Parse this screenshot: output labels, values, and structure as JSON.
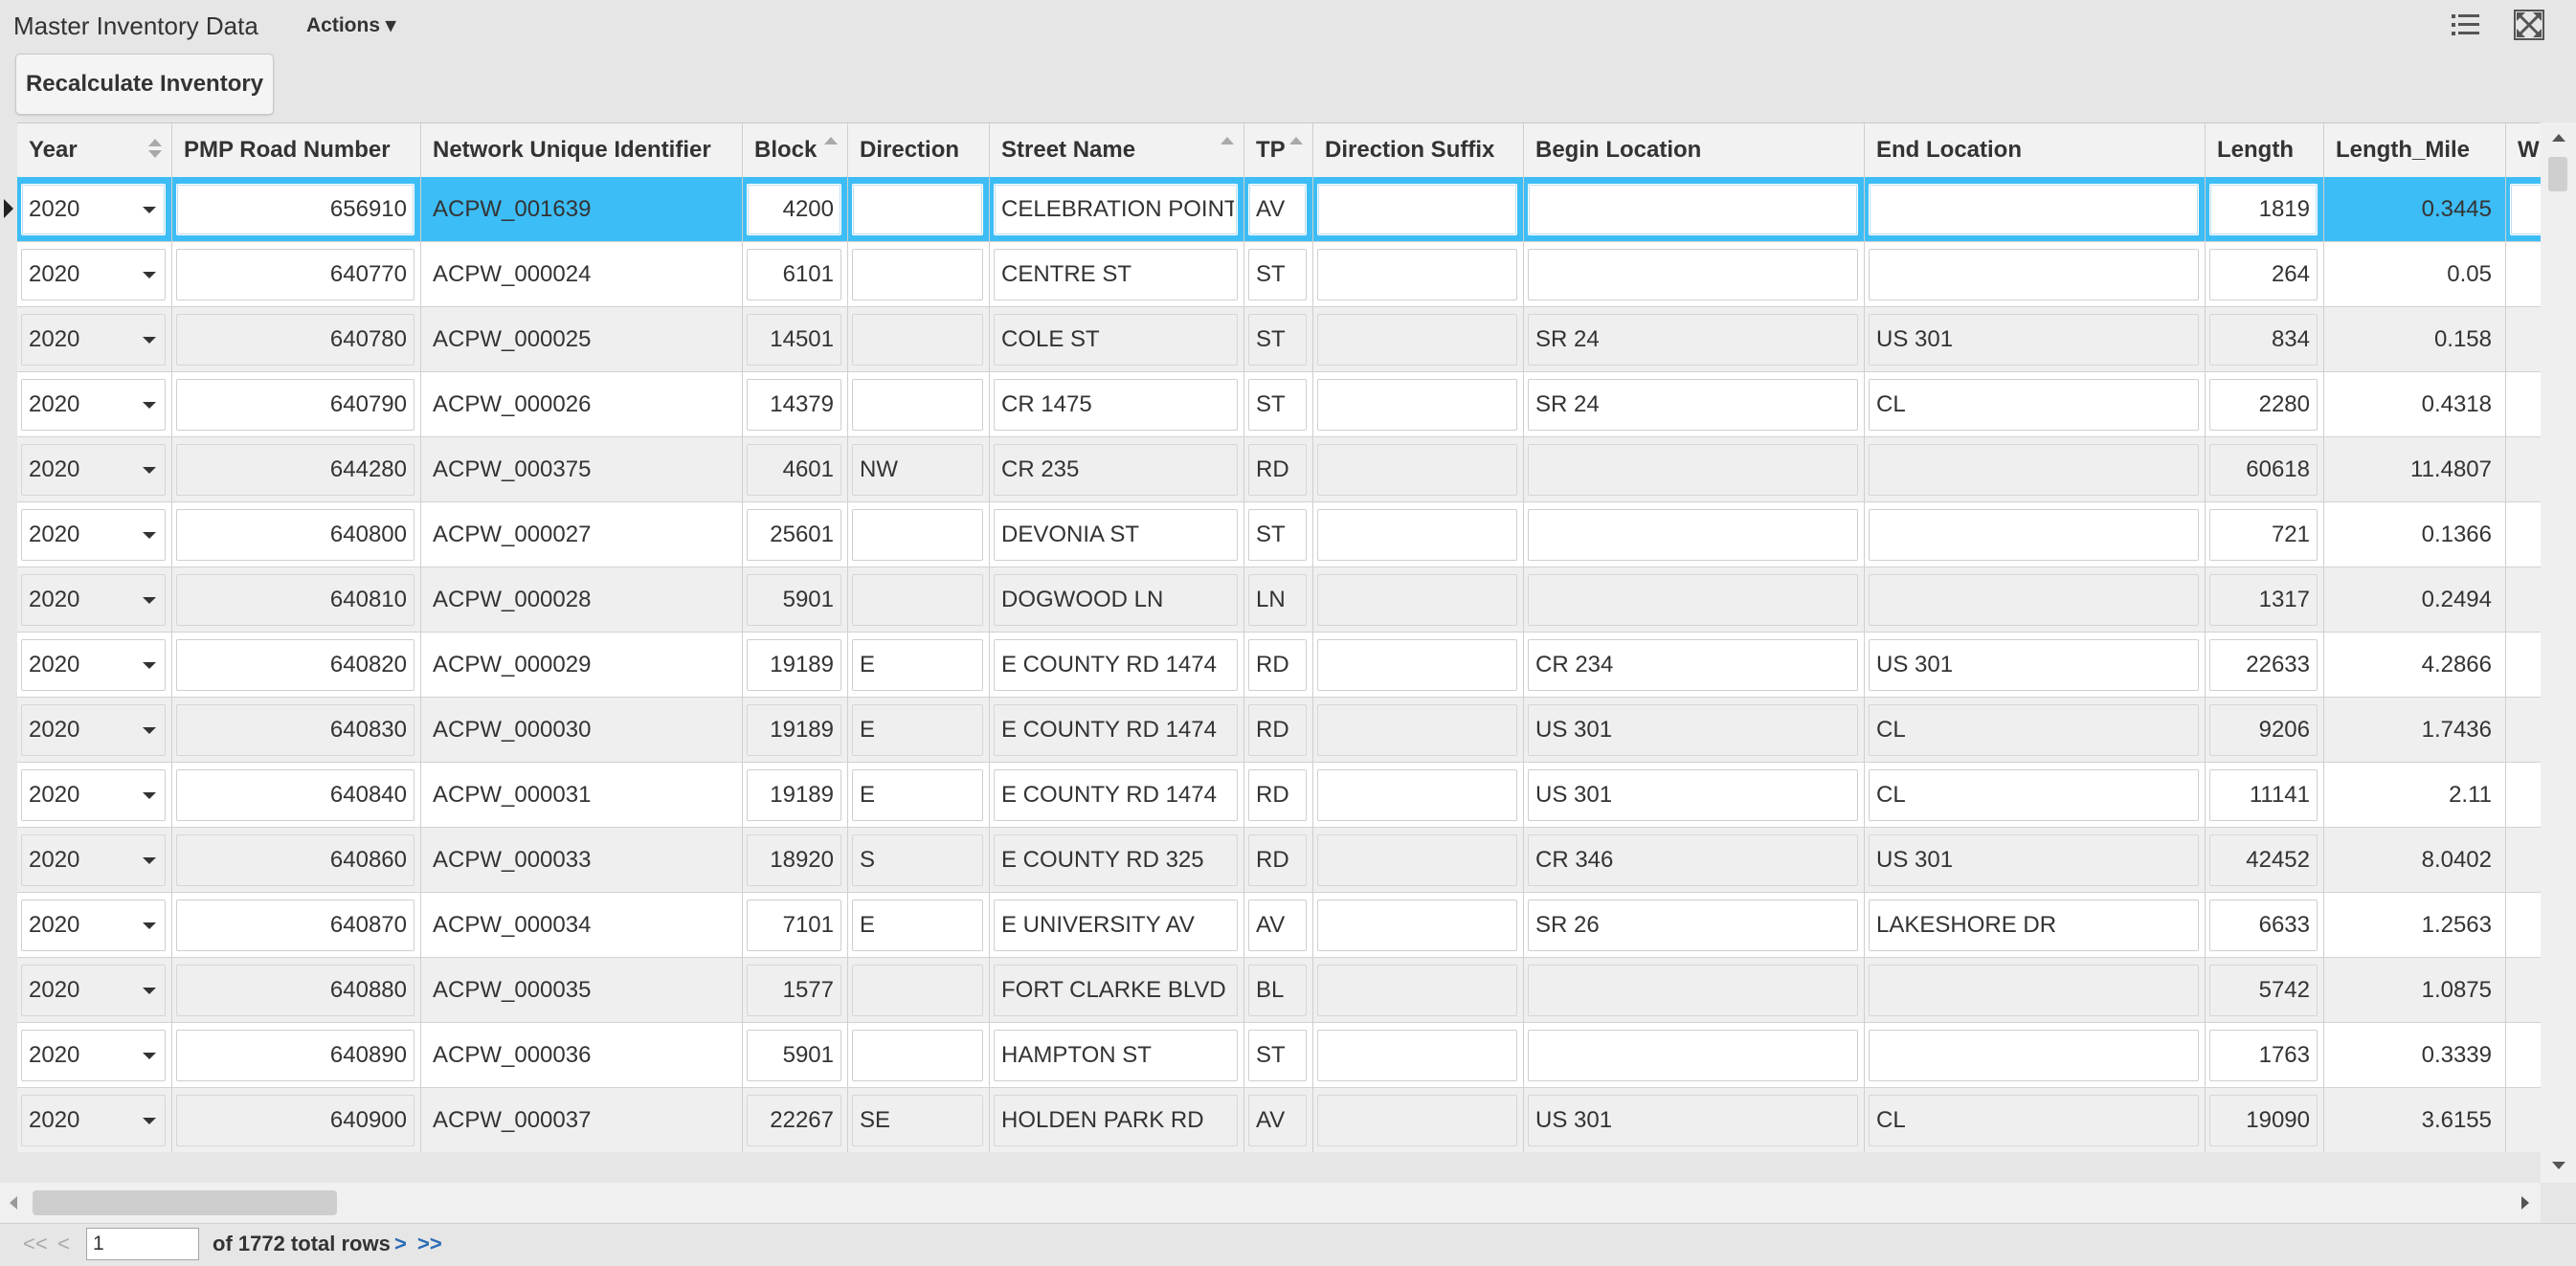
{
  "header": {
    "title": "Master Inventory Data",
    "actions_label": "Actions ▾",
    "list_icon": "list-icon",
    "fullscreen_icon": "fullscreen-icon"
  },
  "toolbar": {
    "recalculate_label": "Recalculate Inventory"
  },
  "grid": {
    "columns": [
      {
        "key": "year",
        "label": "Year",
        "sort": "both"
      },
      {
        "key": "pmp",
        "label": "PMP Road Number",
        "sort": ""
      },
      {
        "key": "nui",
        "label": "Network Unique Identifier",
        "sort": ""
      },
      {
        "key": "block",
        "label": "Block",
        "sort": "asc"
      },
      {
        "key": "direction",
        "label": "Direction",
        "sort": ""
      },
      {
        "key": "street",
        "label": "Street Name",
        "sort": "asc"
      },
      {
        "key": "tp",
        "label": "TP",
        "sort": "asc"
      },
      {
        "key": "dirsuffix",
        "label": "Direction Suffix",
        "sort": ""
      },
      {
        "key": "begin",
        "label": "Begin Location",
        "sort": ""
      },
      {
        "key": "end",
        "label": "End Location",
        "sort": ""
      },
      {
        "key": "length",
        "label": "Length",
        "sort": ""
      },
      {
        "key": "length_mile",
        "label": "Length_Mile",
        "sort": ""
      },
      {
        "key": "wi",
        "label": "Wi",
        "sort": ""
      }
    ],
    "rows": [
      {
        "year": "2020",
        "pmp": "656910",
        "nui": "ACPW_001639",
        "block": "4200",
        "direction": "",
        "street": "CELEBRATION POINT",
        "tp": "AV",
        "dirsuffix": "",
        "begin": "",
        "end": "",
        "length": "1819",
        "length_mile": "0.3445",
        "wi": "",
        "selected": true
      },
      {
        "year": "2020",
        "pmp": "640770",
        "nui": "ACPW_000024",
        "block": "6101",
        "direction": "",
        "street": "CENTRE ST",
        "tp": "ST",
        "dirsuffix": "",
        "begin": "",
        "end": "",
        "length": "264",
        "length_mile": "0.05",
        "wi": ""
      },
      {
        "year": "2020",
        "pmp": "640780",
        "nui": "ACPW_000025",
        "block": "14501",
        "direction": "",
        "street": "COLE ST",
        "tp": "ST",
        "dirsuffix": "",
        "begin": "SR 24",
        "end": "US 301",
        "length": "834",
        "length_mile": "0.158",
        "wi": ""
      },
      {
        "year": "2020",
        "pmp": "640790",
        "nui": "ACPW_000026",
        "block": "14379",
        "direction": "",
        "street": "CR 1475",
        "tp": "ST",
        "dirsuffix": "",
        "begin": "SR 24",
        "end": "CL",
        "length": "2280",
        "length_mile": "0.4318",
        "wi": ""
      },
      {
        "year": "2020",
        "pmp": "644280",
        "nui": "ACPW_000375",
        "block": "4601",
        "direction": "NW",
        "street": "CR 235",
        "tp": "RD",
        "dirsuffix": "",
        "begin": "",
        "end": "",
        "length": "60618",
        "length_mile": "11.4807",
        "wi": ""
      },
      {
        "year": "2020",
        "pmp": "640800",
        "nui": "ACPW_000027",
        "block": "25601",
        "direction": "",
        "street": "DEVONIA ST",
        "tp": "ST",
        "dirsuffix": "",
        "begin": "",
        "end": "",
        "length": "721",
        "length_mile": "0.1366",
        "wi": ""
      },
      {
        "year": "2020",
        "pmp": "640810",
        "nui": "ACPW_000028",
        "block": "5901",
        "direction": "",
        "street": "DOGWOOD LN",
        "tp": "LN",
        "dirsuffix": "",
        "begin": "",
        "end": "",
        "length": "1317",
        "length_mile": "0.2494",
        "wi": ""
      },
      {
        "year": "2020",
        "pmp": "640820",
        "nui": "ACPW_000029",
        "block": "19189",
        "direction": "E",
        "street": "E COUNTY RD 1474",
        "tp": "RD",
        "dirsuffix": "",
        "begin": "CR 234",
        "end": "US 301",
        "length": "22633",
        "length_mile": "4.2866",
        "wi": ""
      },
      {
        "year": "2020",
        "pmp": "640830",
        "nui": "ACPW_000030",
        "block": "19189",
        "direction": "E",
        "street": "E COUNTY RD 1474",
        "tp": "RD",
        "dirsuffix": "",
        "begin": "US 301",
        "end": "CL",
        "length": "9206",
        "length_mile": "1.7436",
        "wi": ""
      },
      {
        "year": "2020",
        "pmp": "640840",
        "nui": "ACPW_000031",
        "block": "19189",
        "direction": "E",
        "street": "E COUNTY RD 1474",
        "tp": "RD",
        "dirsuffix": "",
        "begin": "US 301",
        "end": "CL",
        "length": "11141",
        "length_mile": "2.11",
        "wi": ""
      },
      {
        "year": "2020",
        "pmp": "640860",
        "nui": "ACPW_000033",
        "block": "18920",
        "direction": "S",
        "street": "E COUNTY RD 325",
        "tp": "RD",
        "dirsuffix": "",
        "begin": "CR 346",
        "end": "US 301",
        "length": "42452",
        "length_mile": "8.0402",
        "wi": ""
      },
      {
        "year": "2020",
        "pmp": "640870",
        "nui": "ACPW_000034",
        "block": "7101",
        "direction": "E",
        "street": "E UNIVERSITY AV",
        "tp": "AV",
        "dirsuffix": "",
        "begin": "SR 26",
        "end": "LAKESHORE DR",
        "length": "6633",
        "length_mile": "1.2563",
        "wi": ""
      },
      {
        "year": "2020",
        "pmp": "640880",
        "nui": "ACPW_000035",
        "block": "1577",
        "direction": "",
        "street": "FORT CLARKE BLVD",
        "tp": "BL",
        "dirsuffix": "",
        "begin": "",
        "end": "",
        "length": "5742",
        "length_mile": "1.0875",
        "wi": ""
      },
      {
        "year": "2020",
        "pmp": "640890",
        "nui": "ACPW_000036",
        "block": "5901",
        "direction": "",
        "street": "HAMPTON ST",
        "tp": "ST",
        "dirsuffix": "",
        "begin": "",
        "end": "",
        "length": "1763",
        "length_mile": "0.3339",
        "wi": ""
      },
      {
        "year": "2020",
        "pmp": "640900",
        "nui": "ACPW_000037",
        "block": "22267",
        "direction": "SE",
        "street": "HOLDEN PARK RD",
        "tp": "AV",
        "dirsuffix": "",
        "begin": "US 301",
        "end": "CL",
        "length": "19090",
        "length_mile": "3.6155",
        "wi": ""
      }
    ]
  },
  "pager": {
    "first": "<<",
    "prev": "<",
    "page_value": "1",
    "total_text": "of 1772 total rows",
    "next": ">",
    "last": ">>"
  },
  "colors": {
    "selected_row": "#3dbdf5",
    "header_bg": "#f2f2f2",
    "alt_row": "#efefef",
    "link": "#2a6bb5"
  }
}
